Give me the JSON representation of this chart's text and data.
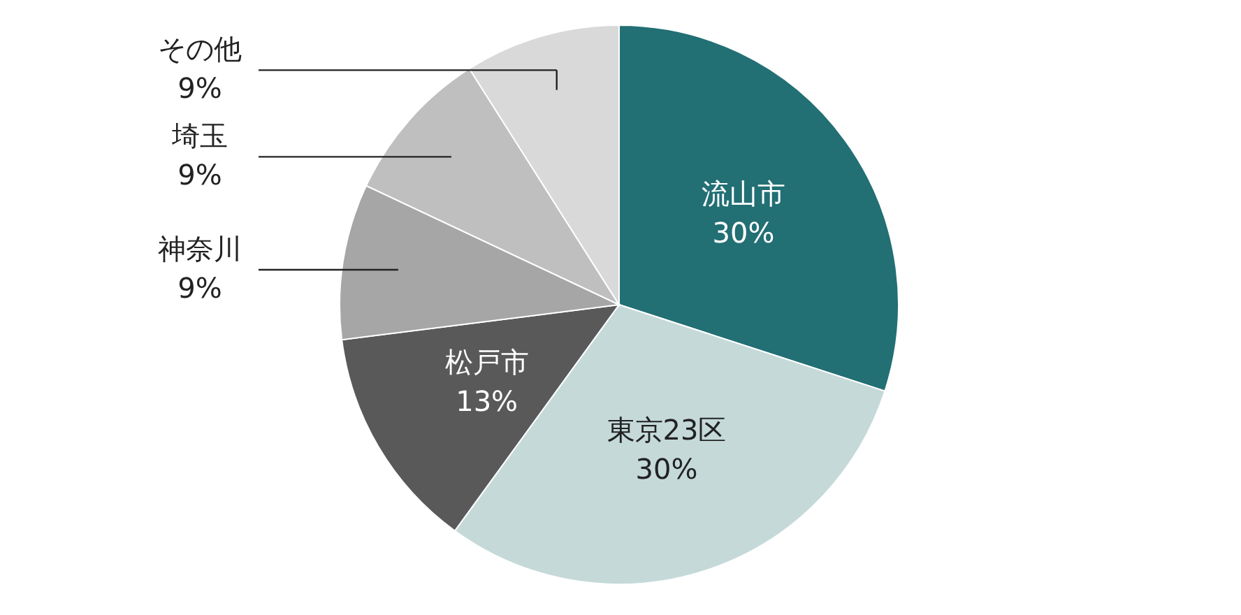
{
  "chart_data": {
    "type": "pie",
    "categories": [
      "流山市",
      "東京23区",
      "松戸市",
      "神奈川",
      "埼玉",
      "その他"
    ],
    "values": [
      30,
      30,
      13,
      9,
      9,
      9
    ],
    "value_labels": [
      "30%",
      "30%",
      "13%",
      "9%",
      "9%",
      "9%"
    ],
    "colors": [
      "#226f74",
      "#c5d9d9",
      "#595959",
      "#a6a6a6",
      "#bfbfbf",
      "#d9d9d9"
    ]
  }
}
